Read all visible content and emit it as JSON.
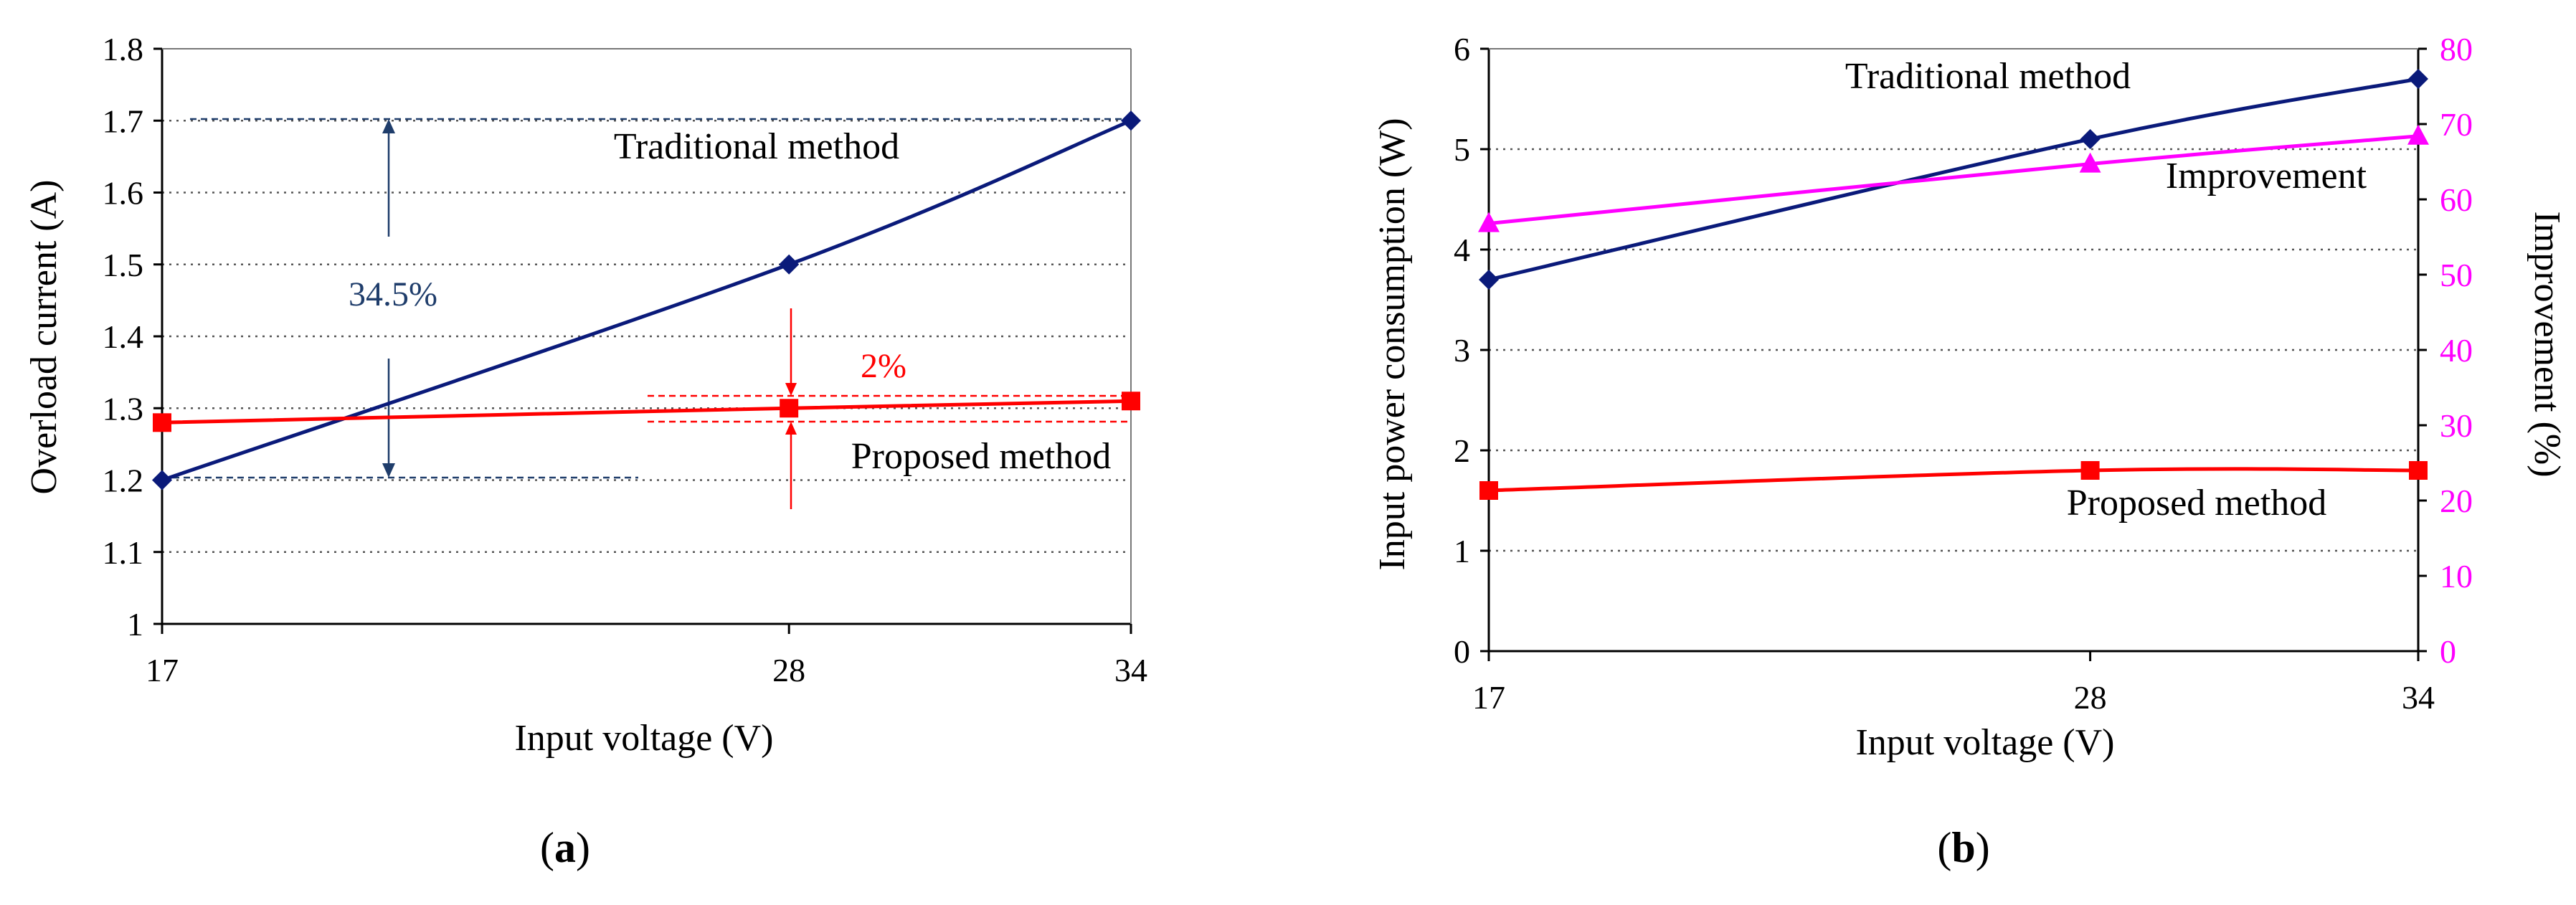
{
  "colors": {
    "traditional": "#0a1a7a",
    "proposed": "#ff0000",
    "improvement": "#ff00ff",
    "annotation_blue": "#1f3d6b"
  },
  "chart_data": [
    {
      "type": "line",
      "panel_label": "a",
      "xlabel": "Input voltage (V)",
      "ylabel": "Overload current (A)",
      "x": [
        17,
        28,
        34
      ],
      "x_tick_labels": [
        "17",
        "28",
        "34"
      ],
      "ylim": [
        1,
        1.8
      ],
      "y_ticks": [
        1,
        1.1,
        1.2,
        1.3,
        1.4,
        1.5,
        1.6,
        1.7,
        1.8
      ],
      "y_tick_labels": [
        "1",
        "1.1",
        "1.2",
        "1.3",
        "1.4",
        "1.5",
        "1.6",
        "1.7",
        "1.8"
      ],
      "grid": true,
      "series": [
        {
          "name": "Traditional method",
          "label": "Traditional method",
          "marker": "diamond",
          "values": [
            1.2,
            1.5,
            1.7
          ]
        },
        {
          "name": "Proposed method",
          "label": "Proposed method",
          "marker": "square",
          "values": [
            1.28,
            1.3,
            1.31
          ]
        }
      ],
      "annotations": {
        "traditional_spread": "34.5%",
        "proposed_spread": "2%"
      }
    },
    {
      "type": "line",
      "panel_label": "b",
      "xlabel": "Input voltage (V)",
      "ylabel": "Input power consumption (W)",
      "y2label": "Improvement (%)",
      "x": [
        17,
        28,
        34
      ],
      "x_tick_labels": [
        "17",
        "28",
        "34"
      ],
      "ylim": [
        0,
        6
      ],
      "y_ticks": [
        0,
        1,
        2,
        3,
        4,
        5,
        6
      ],
      "y_tick_labels": [
        "0",
        "1",
        "2",
        "3",
        "4",
        "5",
        "6"
      ],
      "y2lim": [
        0,
        80
      ],
      "y2_ticks": [
        0,
        10,
        20,
        30,
        40,
        50,
        60,
        70,
        80
      ],
      "y2_tick_labels": [
        "0",
        "10",
        "20",
        "30",
        "40",
        "50",
        "60",
        "70",
        "80"
      ],
      "grid": true,
      "series": [
        {
          "name": "Traditional method",
          "label": "Traditional method",
          "marker": "diamond",
          "axis": "left",
          "values": [
            3.7,
            5.1,
            5.7
          ]
        },
        {
          "name": "Proposed method",
          "label": "Proposed method",
          "marker": "square",
          "axis": "left",
          "values": [
            1.6,
            1.8,
            1.8
          ]
        },
        {
          "name": "Improvement",
          "label": "Improvement",
          "marker": "triangle",
          "axis": "right",
          "values": [
            56.8,
            64.7,
            68.4
          ]
        }
      ]
    }
  ]
}
